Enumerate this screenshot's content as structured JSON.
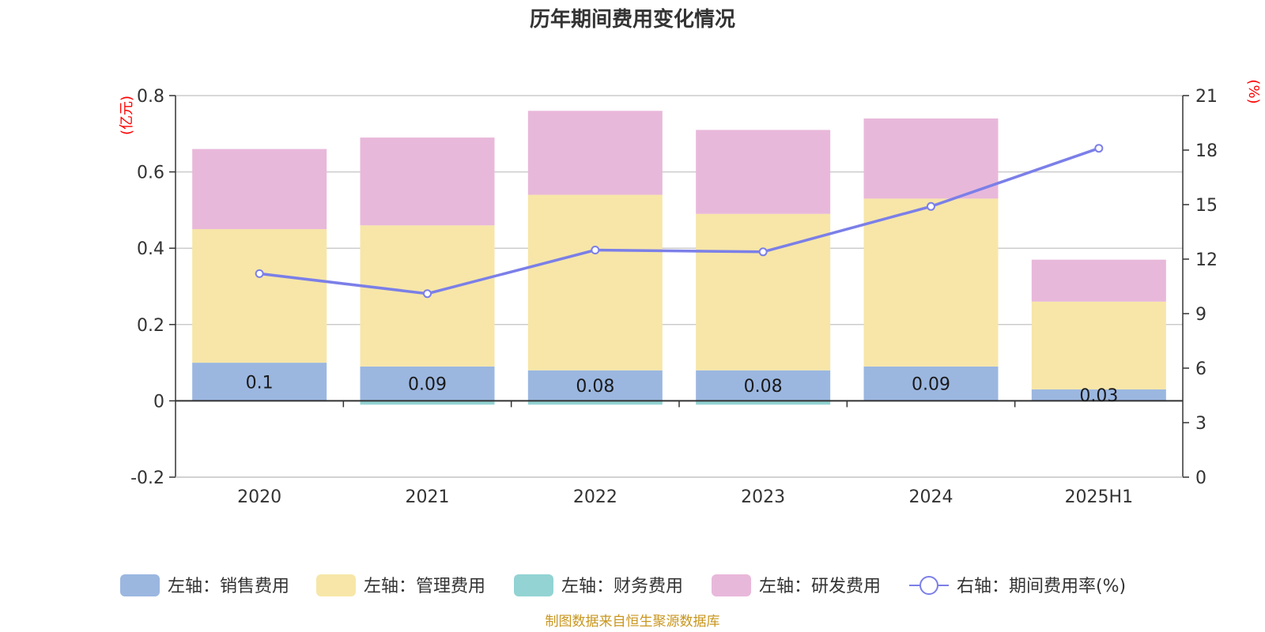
{
  "chart_data": {
    "type": "bar",
    "title": "历年期间费用变化情况",
    "left_unit": "(亿元)",
    "right_unit": "(%)",
    "categories": [
      "2020",
      "2021",
      "2022",
      "2023",
      "2024",
      "2025H1"
    ],
    "series": [
      {
        "name": "左轴：销售费用",
        "axis": "left",
        "type": "bar",
        "color": "#9bb7e0",
        "values": [
          0.1,
          0.09,
          0.08,
          0.08,
          0.09,
          0.03
        ],
        "labels": [
          "0.1",
          "0.09",
          "0.08",
          "0.08",
          "0.09",
          "0.03"
        ]
      },
      {
        "name": "左轴：管理费用",
        "axis": "left",
        "type": "bar",
        "color": "#f7e6a8",
        "values": [
          0.35,
          0.37,
          0.46,
          0.41,
          0.44,
          0.23
        ]
      },
      {
        "name": "左轴：财务费用",
        "axis": "left",
        "type": "bar",
        "color": "#93d3d3",
        "values": [
          0.0,
          -0.01,
          -0.01,
          -0.01,
          0.0,
          0.0
        ]
      },
      {
        "name": "左轴：研发费用",
        "axis": "left",
        "type": "bar",
        "color": "#e8b8da",
        "values": [
          0.21,
          0.23,
          0.22,
          0.22,
          0.21,
          0.11
        ]
      },
      {
        "name": "右轴：期间费用率(%)",
        "axis": "right",
        "type": "line",
        "color": "#7b7fe8",
        "values": [
          11.2,
          10.1,
          12.5,
          12.4,
          14.9,
          18.1
        ]
      }
    ],
    "left_axis": {
      "min": -0.2,
      "max": 0.8,
      "ticks": [
        -0.2,
        0,
        0.2,
        0.4,
        0.6,
        0.8
      ],
      "tick_labels": [
        "-0.2",
        "0",
        "0.2",
        "0.4",
        "0.6",
        "0.8"
      ]
    },
    "right_axis": {
      "min": 0,
      "max": 21,
      "ticks": [
        0,
        3,
        6,
        9,
        12,
        15,
        18,
        21
      ],
      "tick_labels": [
        "0",
        "3",
        "6",
        "9",
        "12",
        "15",
        "18",
        "21"
      ]
    },
    "grid": true,
    "legend_position": "bottom"
  },
  "footer": {
    "source": "制图数据来自恒生聚源数据库"
  }
}
